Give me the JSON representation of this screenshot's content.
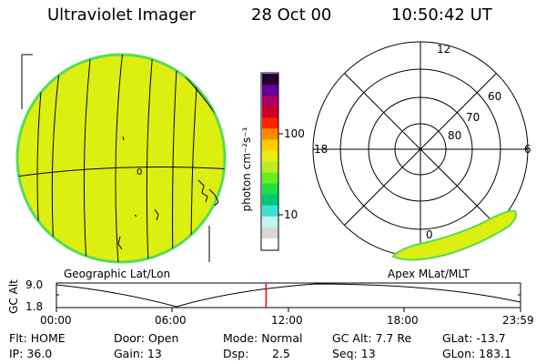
{
  "header": {
    "instrument": "Ultraviolet Imager",
    "date": "28 Oct 00",
    "time": "10:50:42 UT"
  },
  "panels": {
    "geographic_label": "Geographic Lat/Lon",
    "apex_label": "Apex MLat/MLT",
    "geographic_meridian_label": "0"
  },
  "colorbar": {
    "unit_label": "photon cm⁻²s⁻¹",
    "tick_labels": [
      "100",
      "10"
    ],
    "colors": [
      "#ffffff",
      "#d8d8d8",
      "#c0f4f4",
      "#40e0d0",
      "#00c878",
      "#22dd44",
      "#66ee22",
      "#b8ee22",
      "#e8ee11",
      "#ffcc00",
      "#ff8800",
      "#ff2200",
      "#cc0022",
      "#aa0066",
      "#660099",
      "#220033"
    ]
  },
  "polar": {
    "mlt_labels": [
      "12",
      "18",
      "6",
      "0"
    ],
    "lat_labels": [
      "60",
      "70",
      "80"
    ]
  },
  "altitude_plot": {
    "ylabel": "GC Alt",
    "y_top": "9.0",
    "y_bottom": "1.8",
    "x_ticks": [
      "00:00",
      "06:00",
      "12:00",
      "18:00",
      "23:59"
    ],
    "marker_time": "10:50"
  },
  "status": {
    "flt": "Flt: HOME",
    "ip": "IP: 36.0",
    "door": "Door: Open",
    "gain": "Gain: 13",
    "mode": "Mode: Normal",
    "dsp_label": "Dsp:",
    "dsp_value": "2.5",
    "gc_alt": "GC Alt: 7.7 Re",
    "seq": "Seq: 13",
    "glat": "GLat: -13.7",
    "glon": "GLon: 183.1"
  },
  "colors": {
    "aurora_fill": "#ddee11",
    "aurora_edge": "#55dd55",
    "marker": "#ff0000"
  }
}
